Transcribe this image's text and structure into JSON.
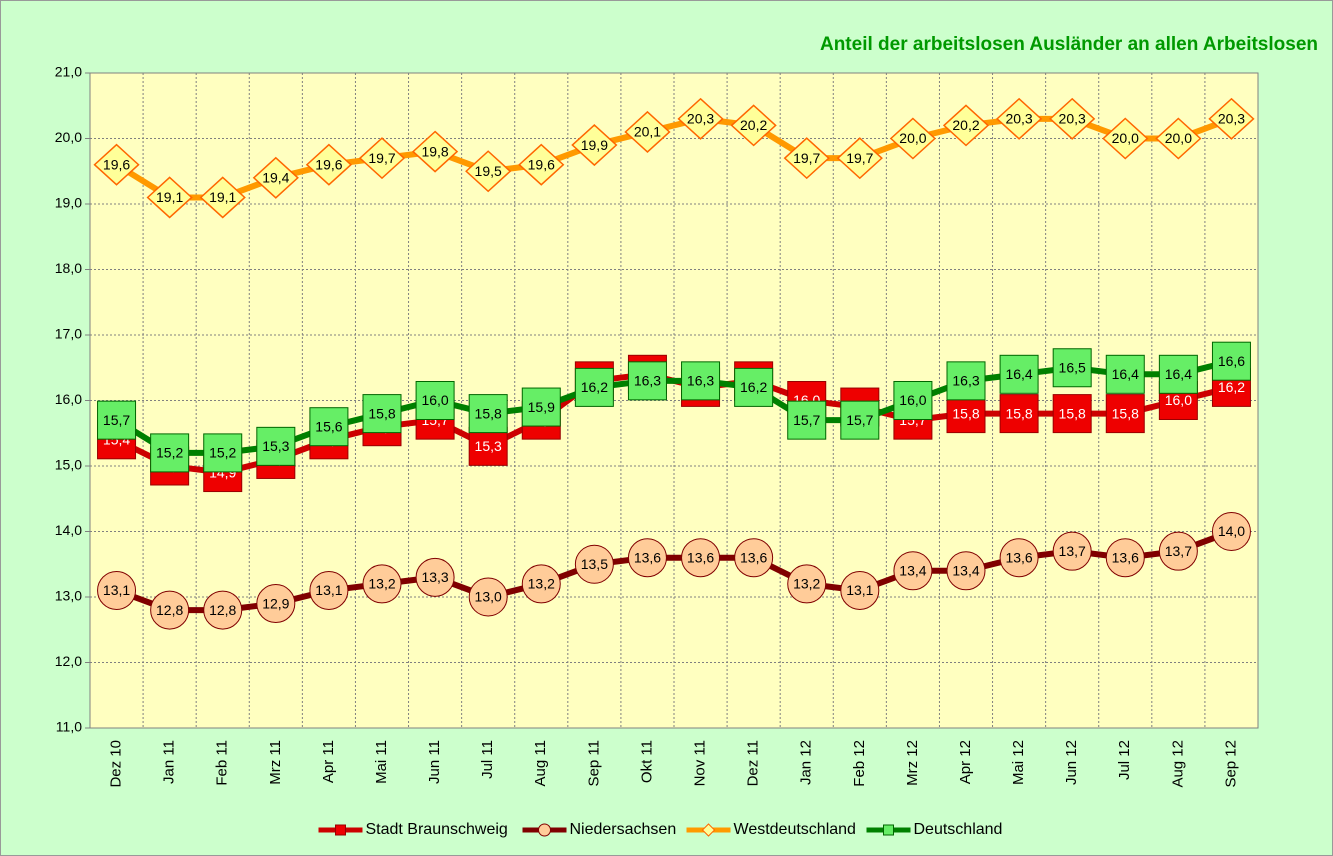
{
  "chart_data": {
    "type": "line",
    "title": "Anteil der arbeitslosen Ausländer an allen Arbeitslosen",
    "categories": [
      "Dez 10",
      "Jan 11",
      "Feb 11",
      "Mrz 11",
      "Apr 11",
      "Mai 11",
      "Jun 11",
      "Jul 11",
      "Aug 11",
      "Sep 11",
      "Okt 11",
      "Nov 11",
      "Dez 11",
      "Jan 12",
      "Feb 12",
      "Mrz 12",
      "Apr 12",
      "Mai 12",
      "Jun 12",
      "Jul 12",
      "Aug 12",
      "Sep 12"
    ],
    "ylim": [
      11,
      21
    ],
    "yticks": [
      {
        "value": 11,
        "label": "11,0"
      },
      {
        "value": 12,
        "label": "12,0"
      },
      {
        "value": 13,
        "label": "13,0"
      },
      {
        "value": 14,
        "label": "14,0"
      },
      {
        "value": 15,
        "label": "15,0"
      },
      {
        "value": 16,
        "label": "16,0"
      },
      {
        "value": 17,
        "label": "17,0"
      },
      {
        "value": 18,
        "label": "18,0"
      },
      {
        "value": 19,
        "label": "19,0"
      },
      {
        "value": 20,
        "label": "20,0"
      },
      {
        "value": 21,
        "label": "21,0"
      }
    ],
    "grid": true,
    "legend": "bottom",
    "series": [
      {
        "name": "Stadt Braunschweig",
        "color": "#ff0000",
        "marker": "square",
        "values": [
          15.4,
          15.0,
          14.9,
          15.1,
          15.4,
          15.6,
          15.7,
          15.3,
          15.7,
          16.3,
          16.4,
          16.2,
          16.3,
          16.0,
          15.9,
          15.7,
          15.8,
          15.8,
          15.8,
          15.8,
          16.0,
          16.2
        ],
        "value_labels": [
          "15,4",
          "15,0",
          "14,9",
          "15,1",
          "15,4",
          "15,6",
          "15,7",
          "15,3",
          "15,7",
          "16,3",
          "16,4",
          "16,2",
          "16,3",
          "16,0",
          "15,9",
          "15,7",
          "15,8",
          "15,8",
          "15,8",
          "15,8",
          "16,0",
          "16,2"
        ]
      },
      {
        "name": "Niedersachsen",
        "color": "#800000",
        "marker": "circle",
        "values": [
          13.1,
          12.8,
          12.8,
          12.9,
          13.1,
          13.2,
          13.3,
          13.0,
          13.2,
          13.5,
          13.6,
          13.6,
          13.6,
          13.2,
          13.1,
          13.4,
          13.4,
          13.6,
          13.7,
          13.6,
          13.7,
          14.0
        ],
        "value_labels": [
          "13,1",
          "12,8",
          "12,8",
          "12,9",
          "13,1",
          "13,2",
          "13,3",
          "13,0",
          "13,2",
          "13,5",
          "13,6",
          "13,6",
          "13,6",
          "13,2",
          "13,1",
          "13,4",
          "13,4",
          "13,6",
          "13,7",
          "13,6",
          "13,7",
          "14,0"
        ]
      },
      {
        "name": "Westdeutschland",
        "color": "#ff9900",
        "marker": "diamond",
        "values": [
          19.6,
          19.1,
          19.1,
          19.4,
          19.6,
          19.7,
          19.8,
          19.5,
          19.6,
          19.9,
          20.1,
          20.3,
          20.2,
          19.7,
          19.7,
          20.0,
          20.2,
          20.3,
          20.3,
          20.0,
          20.0,
          20.3
        ],
        "value_labels": [
          "19,6",
          "19,1",
          "19,1",
          "19,4",
          "19,6",
          "19,7",
          "19,8",
          "19,5",
          "19,6",
          "19,9",
          "20,1",
          "20,3",
          "20,2",
          "19,7",
          "19,7",
          "20,0",
          "20,2",
          "20,3",
          "20,3",
          "20,0",
          "20,0",
          "20,3"
        ]
      },
      {
        "name": "Deutschland",
        "color": "#008000",
        "marker": "square",
        "values": [
          15.7,
          15.2,
          15.2,
          15.3,
          15.6,
          15.8,
          16.0,
          15.8,
          15.9,
          16.2,
          16.3,
          16.3,
          16.2,
          15.7,
          15.7,
          16.0,
          16.3,
          16.4,
          16.5,
          16.4,
          16.4,
          16.6
        ],
        "value_labels": [
          "15,7",
          "15,2",
          "15,2",
          "15,3",
          "15,6",
          "15,8",
          "16,0",
          "15,8",
          "15,9",
          "16,2",
          "16,3",
          "16,3",
          "16,2",
          "15,7",
          "15,7",
          "16,0",
          "16,3",
          "16,4",
          "16,5",
          "16,4",
          "16,4",
          "16,6"
        ]
      }
    ]
  }
}
